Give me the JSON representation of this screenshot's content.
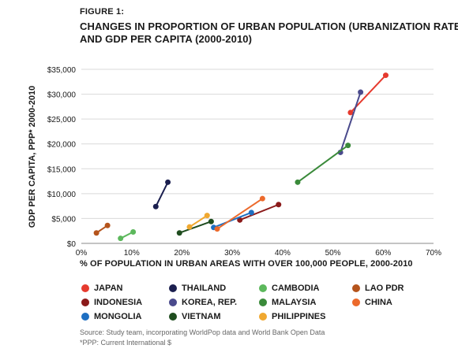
{
  "figure_label": "FIGURE 1:",
  "title_line1": "CHANGES IN PROPORTION OF URBAN POPULATION (URBANIZATION RATE)",
  "title_line2": "AND GDP PER CAPITA (2000-2010)",
  "source_note": "Source: Study team, incorporating WorldPop data and World Bank Open Data",
  "ppp_note": "*PPP: Current International $",
  "chart_data": {
    "type": "line",
    "xlabel": "% OF POPULATION IN URBAN AREAS WITH OVER 100,000 PEOPLE, 2000-2010",
    "ylabel": "GDP PER CAPITA, PPP* 2000-2010",
    "xlim": [
      0,
      70
    ],
    "ylim": [
      0,
      35000
    ],
    "x_ticks": [
      0,
      10,
      20,
      30,
      40,
      50,
      60,
      70
    ],
    "x_tick_labels": [
      "0%",
      "10%",
      "20%",
      "30%",
      "40%",
      "50%",
      "60%",
      "70%"
    ],
    "y_ticks": [
      0,
      5000,
      10000,
      15000,
      20000,
      25000,
      30000,
      35000
    ],
    "y_tick_labels": [
      "$0",
      "$5,000",
      "$10,000",
      "$15,000",
      "$20,000",
      "$25,000",
      "$30,000",
      "$35,000"
    ],
    "grid": "horizontal",
    "legend_position": "bottom",
    "series": [
      {
        "name": "JAPAN",
        "color": "#e63a2e",
        "points": [
          [
            53.5,
            26300
          ],
          [
            60.5,
            33800
          ]
        ]
      },
      {
        "name": "INDONESIA",
        "color": "#8b1a1a",
        "points": [
          [
            31.5,
            4700
          ],
          [
            39.2,
            7800
          ]
        ]
      },
      {
        "name": "THAILAND",
        "color": "#1b1f4f",
        "points": [
          [
            14.8,
            7400
          ],
          [
            17.2,
            12300
          ]
        ]
      },
      {
        "name": "KOREA, REP.",
        "color": "#4a4a8c",
        "points": [
          [
            51.5,
            18300
          ],
          [
            55.5,
            30400
          ]
        ]
      },
      {
        "name": "MONGOLIA",
        "color": "#1e6fc2",
        "points": [
          [
            26.3,
            3200
          ],
          [
            33.8,
            6200
          ]
        ]
      },
      {
        "name": "CAMBODIA",
        "color": "#5cb85c",
        "points": [
          [
            7.8,
            1000
          ],
          [
            10.3,
            2300
          ]
        ]
      },
      {
        "name": "MALAYSIA",
        "color": "#3a8a3a",
        "points": [
          [
            43.0,
            12300
          ],
          [
            53.0,
            19700
          ]
        ]
      },
      {
        "name": "VIETNAM",
        "color": "#1f4d1f",
        "points": [
          [
            19.5,
            2100
          ],
          [
            25.8,
            4400
          ]
        ]
      },
      {
        "name": "LAO PDR",
        "color": "#b5541c",
        "points": [
          [
            3.0,
            2100
          ],
          [
            5.2,
            3600
          ]
        ]
      },
      {
        "name": "CHINA",
        "color": "#ec6a2c",
        "points": [
          [
            27.0,
            2900
          ],
          [
            36.0,
            9000
          ]
        ]
      },
      {
        "name": "PHILIPPINES",
        "color": "#f0a830",
        "points": [
          [
            21.5,
            3300
          ],
          [
            25.0,
            5600
          ]
        ]
      }
    ]
  },
  "legend": [
    {
      "label": "JAPAN",
      "color": "#e63a2e"
    },
    {
      "label": "THAILAND",
      "color": "#1b1f4f"
    },
    {
      "label": "CAMBODIA",
      "color": "#5cb85c"
    },
    {
      "label": "LAO PDR",
      "color": "#b5541c"
    },
    {
      "label": "INDONESIA",
      "color": "#8b1a1a"
    },
    {
      "label": "KOREA, REP.",
      "color": "#4a4a8c"
    },
    {
      "label": "MALAYSIA",
      "color": "#3a8a3a"
    },
    {
      "label": "CHINA",
      "color": "#ec6a2c"
    },
    {
      "label": "MONGOLIA",
      "color": "#1e6fc2"
    },
    {
      "label": "VIETNAM",
      "color": "#1f4d1f"
    },
    {
      "label": "PHILIPPINES",
      "color": "#f0a830"
    }
  ]
}
